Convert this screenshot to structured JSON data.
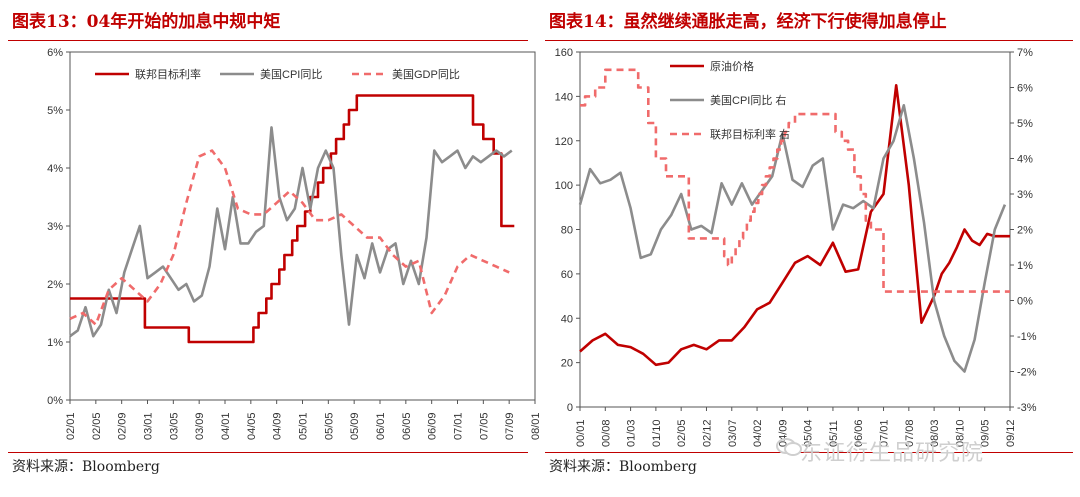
{
  "left": {
    "title": "图表13：04年开始的加息中规中矩",
    "source": "资料来源：Bloomberg"
  },
  "right": {
    "title": "图表14：虽然继续通胀走高，经济下行使得加息停止",
    "source": "资料来源：Bloomberg"
  },
  "watermark": "东证衍生品研究院",
  "chart_data": [
    {
      "type": "line",
      "title": "",
      "ylim": [
        0,
        6
      ],
      "y_ticks": [
        "0%",
        "1%",
        "2%",
        "3%",
        "4%",
        "5%",
        "6%"
      ],
      "x_ticks": [
        "02/01",
        "02/05",
        "02/09",
        "03/01",
        "03/05",
        "03/09",
        "04/01",
        "04/05",
        "04/09",
        "05/01",
        "05/05",
        "05/09",
        "06/01",
        "06/05",
        "06/09",
        "07/01",
        "07/05",
        "07/09",
        "08/01"
      ],
      "legend_position": "top",
      "colors": {
        "fed": "#c00000",
        "cpi": "#8c8c8c",
        "gdp": "#f06b6b"
      },
      "series": [
        {
          "name": "联邦目标利率",
          "style": "solid",
          "x": [
            0,
            2.9,
            2.9,
            4.6,
            4.6,
            7.1,
            7.1,
            7.3,
            7.3,
            7.6,
            7.6,
            7.8,
            7.8,
            8.1,
            8.1,
            8.3,
            8.3,
            8.6,
            8.6,
            8.8,
            8.8,
            9.1,
            9.1,
            9.3,
            9.3,
            9.6,
            9.6,
            9.8,
            9.8,
            10.1,
            10.1,
            10.3,
            10.3,
            10.6,
            10.6,
            10.8,
            10.8,
            11.1,
            11.1,
            11.3,
            11.3,
            11.6,
            11.6,
            11.8,
            11.8,
            12.1,
            12.1,
            12.3,
            12.3,
            15.6,
            15.6,
            16.0,
            16.0,
            16.4,
            16.4,
            16.7,
            16.7,
            17.2
          ],
          "values": [
            1.75,
            1.75,
            1.25,
            1.25,
            1.0,
            1.0,
            1.25,
            1.25,
            1.5,
            1.5,
            1.75,
            1.75,
            2.0,
            2.0,
            2.25,
            2.25,
            2.5,
            2.5,
            2.75,
            2.75,
            3.0,
            3.0,
            3.25,
            3.25,
            3.5,
            3.5,
            3.75,
            3.75,
            4.0,
            4.0,
            4.25,
            4.25,
            4.5,
            4.5,
            4.75,
            4.75,
            5.0,
            5.0,
            5.25,
            5.25,
            5.25,
            5.25,
            5.25,
            5.25,
            5.25,
            5.25,
            5.25,
            5.25,
            5.25,
            5.25,
            4.75,
            4.75,
            4.5,
            4.5,
            4.25,
            4.25,
            3.0,
            3.0
          ]
        },
        {
          "name": "美国CPI同比",
          "style": "solid",
          "x": [
            0,
            0.3,
            0.6,
            0.9,
            1.2,
            1.5,
            1.8,
            2.1,
            2.4,
            2.7,
            3.0,
            3.3,
            3.6,
            3.9,
            4.2,
            4.5,
            4.8,
            5.1,
            5.4,
            5.7,
            6.0,
            6.3,
            6.6,
            6.9,
            7.2,
            7.5,
            7.8,
            8.1,
            8.4,
            8.7,
            9.0,
            9.3,
            9.6,
            9.9,
            10.2,
            10.5,
            10.8,
            11.1,
            11.4,
            11.7,
            12.0,
            12.3,
            12.6,
            12.9,
            13.2,
            13.5,
            13.8,
            14.1,
            14.4,
            14.7,
            15.0,
            15.3,
            15.6,
            15.9,
            16.2,
            16.5,
            16.8,
            17.1
          ],
          "values": [
            1.1,
            1.2,
            1.6,
            1.1,
            1.3,
            1.9,
            1.5,
            2.2,
            2.6,
            3.0,
            2.1,
            2.2,
            2.3,
            2.1,
            1.9,
            2.0,
            1.7,
            1.8,
            2.3,
            3.3,
            2.6,
            3.5,
            2.7,
            2.7,
            2.9,
            3.0,
            4.7,
            3.5,
            3.1,
            3.3,
            4.0,
            3.3,
            4.0,
            4.3,
            4.0,
            2.5,
            1.3,
            2.5,
            2.1,
            2.7,
            2.2,
            2.6,
            2.7,
            2.0,
            2.4,
            2.0,
            2.8,
            4.3,
            4.1,
            4.2,
            4.3,
            4.0,
            4.2,
            4.1,
            4.2,
            4.3,
            4.2,
            4.3
          ]
        },
        {
          "name": "美国GDP同比",
          "style": "dashed",
          "x": [
            0,
            0.5,
            1.0,
            1.5,
            2.0,
            2.5,
            3.0,
            3.5,
            4.0,
            4.5,
            5.0,
            5.5,
            6.0,
            6.5,
            7.0,
            7.5,
            8.0,
            8.5,
            9.0,
            9.5,
            10.0,
            10.5,
            11.0,
            11.5,
            12.0,
            12.5,
            13.0,
            13.5,
            14.0,
            14.5,
            15.0,
            15.5,
            16.0,
            16.5,
            17.0
          ],
          "values": [
            1.4,
            1.5,
            1.3,
            1.9,
            2.1,
            1.9,
            1.7,
            2.0,
            2.5,
            3.4,
            4.2,
            4.3,
            4.0,
            3.3,
            3.2,
            3.2,
            3.4,
            3.6,
            3.4,
            3.1,
            3.1,
            3.2,
            3.0,
            2.8,
            2.8,
            2.5,
            2.3,
            2.4,
            1.5,
            1.8,
            2.3,
            2.5,
            2.4,
            2.3,
            2.2
          ]
        }
      ]
    },
    {
      "type": "line",
      "title": "",
      "ylim": [
        0,
        160
      ],
      "y2lim": [
        -3,
        7
      ],
      "y_ticks": [
        "0",
        "20",
        "40",
        "60",
        "80",
        "100",
        "120",
        "140",
        "160"
      ],
      "y2_ticks": [
        "-3%",
        "-2%",
        "-1%",
        "0%",
        "1%",
        "2%",
        "3%",
        "4%",
        "5%",
        "6%",
        "7%"
      ],
      "x_ticks": [
        "00/01",
        "00/08",
        "01/03",
        "01/10",
        "02/05",
        "02/12",
        "03/07",
        "04/02",
        "04/09",
        "05/04",
        "05/11",
        "06/06",
        "07/01",
        "07/08",
        "08/03",
        "08/10",
        "09/05",
        "09/12"
      ],
      "legend_position": "top-left",
      "colors": {
        "oil": "#c00000",
        "cpi": "#8c8c8c",
        "fed": "#f06b6b"
      },
      "series": [
        {
          "name": "原油价格",
          "axis": "left",
          "style": "solid",
          "x": [
            0,
            0.5,
            1.0,
            1.5,
            2.0,
            2.5,
            3.0,
            3.5,
            4.0,
            4.5,
            5.0,
            5.5,
            6.0,
            6.5,
            7.0,
            7.5,
            8.0,
            8.5,
            9.0,
            9.5,
            10.0,
            10.5,
            11.0,
            11.5,
            12.0,
            12.5,
            13.0,
            13.5,
            14.0,
            14.3,
            14.6,
            14.9,
            15.2,
            15.5,
            15.8,
            16.1,
            16.4,
            16.7,
            17.0
          ],
          "values": [
            25,
            30,
            33,
            28,
            27,
            24,
            19,
            20,
            26,
            28,
            26,
            30,
            30,
            36,
            44,
            47,
            56,
            65,
            68,
            64,
            74,
            61,
            62,
            88,
            96,
            145,
            100,
            38,
            50,
            60,
            65,
            72,
            80,
            75,
            73,
            78,
            77,
            77,
            77
          ]
        },
        {
          "name": "美国CPI同比 右",
          "axis": "right",
          "style": "solid",
          "x": [
            0,
            0.4,
            0.8,
            1.2,
            1.6,
            2.0,
            2.4,
            2.8,
            3.2,
            3.6,
            4.0,
            4.4,
            4.8,
            5.2,
            5.6,
            6.0,
            6.4,
            6.8,
            7.2,
            7.6,
            8.0,
            8.4,
            8.8,
            9.2,
            9.6,
            10.0,
            10.4,
            10.8,
            11.2,
            11.6,
            12.0,
            12.4,
            12.8,
            13.2,
            13.6,
            14.0,
            14.4,
            14.8,
            15.2,
            15.6,
            16.0,
            16.4,
            16.8
          ],
          "values": [
            2.7,
            3.7,
            3.3,
            3.4,
            3.6,
            2.6,
            1.2,
            1.3,
            2.0,
            2.4,
            3.0,
            2.0,
            2.1,
            1.9,
            3.3,
            2.7,
            3.3,
            2.7,
            3.1,
            3.5,
            4.7,
            3.4,
            3.2,
            3.8,
            4.0,
            2.0,
            2.7,
            2.6,
            2.8,
            2.6,
            4.0,
            4.5,
            5.5,
            4.0,
            2.2,
            0.0,
            -1.0,
            -1.7,
            -2.0,
            -1.1,
            0.5,
            2.0,
            2.7
          ]
        },
        {
          "name": "联邦目标利率 右",
          "axis": "right",
          "style": "dashed",
          "x": [
            0,
            0.2,
            0.2,
            0.6,
            0.6,
            1.0,
            1.0,
            2.3,
            2.3,
            2.7,
            2.7,
            3.0,
            3.0,
            3.4,
            3.4,
            4.3,
            4.3,
            5.7,
            5.7,
            5.85,
            5.85,
            6.0,
            6.0,
            6.15,
            6.15,
            6.3,
            6.3,
            6.45,
            6.45,
            6.6,
            6.6,
            6.75,
            6.75,
            6.9,
            6.9,
            7.05,
            7.05,
            7.2,
            7.2,
            7.35,
            7.35,
            7.5,
            7.5,
            7.65,
            7.65,
            7.8,
            7.8,
            7.95,
            7.95,
            8.1,
            8.1,
            8.25,
            8.25,
            8.5,
            8.5,
            10.1,
            10.1,
            10.35,
            10.35,
            10.6,
            10.6,
            10.85,
            10.85,
            11.1,
            11.1,
            11.3,
            11.3,
            11.5,
            11.5,
            12.0,
            12.0,
            13.3,
            13.3,
            17.0
          ],
          "values": [
            5.5,
            5.5,
            5.75,
            5.75,
            6.0,
            6.0,
            6.5,
            6.5,
            6.0,
            6.0,
            5.0,
            5.0,
            4.0,
            4.0,
            3.5,
            3.5,
            1.75,
            1.75,
            1.25,
            1.25,
            1.0,
            1.0,
            1.25,
            1.25,
            1.5,
            1.5,
            1.75,
            1.75,
            2.0,
            2.0,
            2.25,
            2.25,
            2.5,
            2.5,
            2.75,
            2.75,
            3.0,
            3.0,
            3.25,
            3.25,
            3.5,
            3.5,
            3.75,
            3.75,
            4.0,
            4.0,
            4.25,
            4.25,
            4.5,
            4.5,
            4.75,
            4.75,
            5.0,
            5.0,
            5.25,
            5.25,
            4.75,
            4.75,
            4.5,
            4.5,
            4.25,
            4.25,
            3.5,
            3.5,
            3.0,
            3.0,
            2.25,
            2.25,
            2.0,
            2.0,
            0.25,
            0.25,
            0.25,
            0.25
          ]
        }
      ]
    }
  ]
}
